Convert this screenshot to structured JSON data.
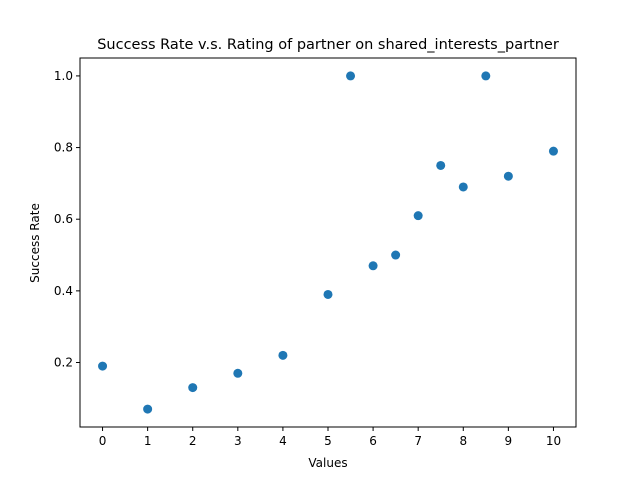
{
  "chart_data": {
    "type": "scatter",
    "title": "Success Rate v.s. Rating of partner on shared_interests_partner",
    "xlabel": "Values",
    "ylabel": "Success Rate",
    "xlim": [
      -0.5,
      10.5
    ],
    "ylim": [
      0.02,
      1.05
    ],
    "xticks": [
      0,
      1,
      2,
      3,
      4,
      5,
      6,
      7,
      8,
      9,
      10
    ],
    "xtick_labels": [
      "0",
      "1",
      "2",
      "3",
      "4",
      "5",
      "6",
      "7",
      "8",
      "9",
      "10"
    ],
    "yticks": [
      0.2,
      0.4,
      0.6,
      0.8,
      1.0
    ],
    "ytick_labels": [
      "0.2",
      "0.4",
      "0.6",
      "0.8",
      "1.0"
    ],
    "grid": false,
    "marker_color": "#1f77b4",
    "series": [
      {
        "x": [
          0,
          1,
          2,
          3,
          4,
          5,
          5.5,
          6,
          6.5,
          7,
          7.5,
          8,
          8.5,
          9,
          10
        ],
        "y": [
          0.19,
          0.07,
          0.13,
          0.17,
          0.22,
          0.39,
          1.0,
          0.47,
          0.5,
          0.61,
          0.75,
          0.69,
          1.0,
          0.72,
          0.79
        ]
      }
    ]
  }
}
